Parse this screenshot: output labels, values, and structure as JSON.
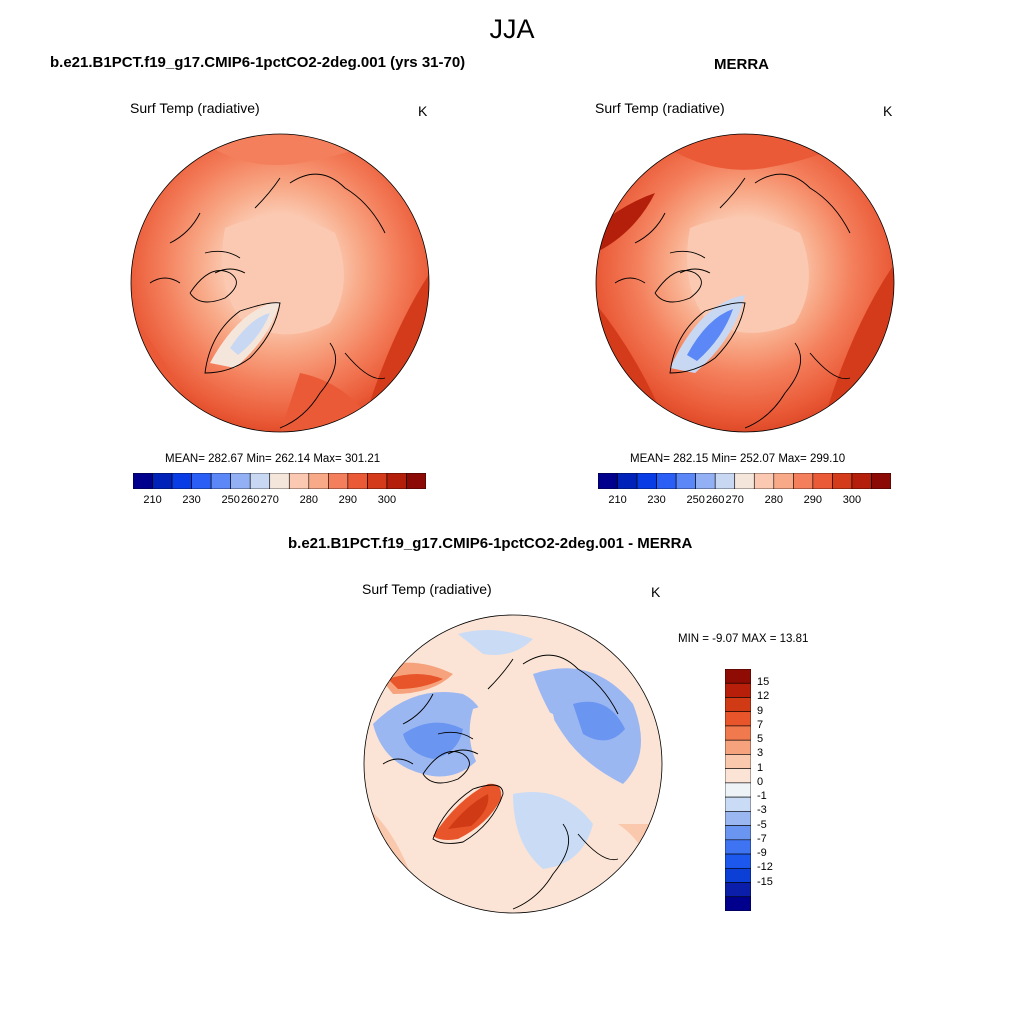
{
  "figure": {
    "season": "JJA"
  },
  "colors": {
    "abs_scale": [
      "#00008c",
      "#0022b8",
      "#0a3ce6",
      "#2a5ef5",
      "#5b87f7",
      "#93b0f4",
      "#c8d8f3",
      "#f5e6dc",
      "#fbc9b1",
      "#f8a987",
      "#f47f5c",
      "#ea5a37",
      "#d43b1b",
      "#b41f0c",
      "#8c0a05"
    ],
    "diff_scale": [
      "#00008c",
      "#0a1eaa",
      "#0b3fd6",
      "#1c58ee",
      "#3e74f2",
      "#6a95f0",
      "#9bb7f2",
      "#cadcf5",
      "#eef3f7",
      "#fbe4d5",
      "#fac8ac",
      "#f5a27d",
      "#f07a4e",
      "#e9552a",
      "#d03a15",
      "#b81f0a",
      "#8f0c04"
    ],
    "coastline": "#000000"
  },
  "panels": {
    "model": {
      "title": "b.e21.B1PCT.f19_g17.CMIP6-1pctCO2-2deg.001 (yrs 31-70)",
      "variable": "Surf Temp (radiative)",
      "units": "K",
      "stats": "MEAN= 282.67  Min= 262.14  Max= 301.21",
      "colorbar_ticks": [
        "210",
        "230",
        "250",
        "260",
        "270",
        "280",
        "290",
        "300"
      ]
    },
    "obs": {
      "title": "MERRA",
      "variable": "Surf Temp (radiative)",
      "units": "K",
      "stats": "MEAN= 282.15  Min= 252.07  Max= 299.10",
      "colorbar_ticks": [
        "210",
        "230",
        "250",
        "260",
        "270",
        "280",
        "290",
        "300"
      ]
    },
    "diff": {
      "title": "b.e21.B1PCT.f19_g17.CMIP6-1pctCO2-2deg.001 - MERRA",
      "variable": "Surf Temp (radiative)",
      "units": "K",
      "stats": "MIN =  -9.07 MAX =  13.81",
      "colorbar_ticks": [
        "15",
        "12",
        "9",
        "7",
        "5",
        "3",
        "1",
        "0",
        "-1",
        "-3",
        "-5",
        "-7",
        "-9",
        "-12",
        "-15"
      ]
    }
  }
}
